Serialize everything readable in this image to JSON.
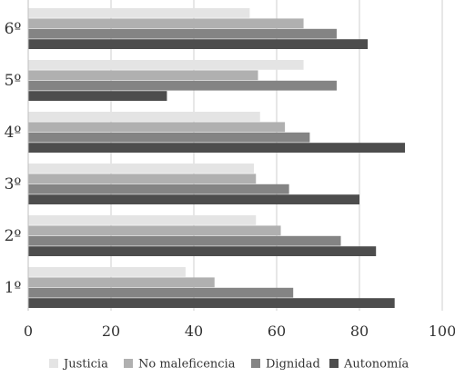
{
  "chart_data": {
    "type": "bar",
    "orientation": "horizontal",
    "categories": [
      "6º",
      "5º",
      "4º",
      "3º",
      "2º",
      "1º"
    ],
    "series": [
      {
        "name": "Justicia",
        "color": "#e4e4e4",
        "values": [
          53.5,
          66.5,
          56,
          54.5,
          55,
          38
        ]
      },
      {
        "name": "No maleficencia",
        "color": "#b0b0b0",
        "values": [
          66.5,
          55.5,
          62,
          55,
          61,
          45
        ]
      },
      {
        "name": "Dignidad",
        "color": "#848484",
        "values": [
          74.5,
          74.5,
          68,
          63,
          75.5,
          64
        ]
      },
      {
        "name": "Autonomía",
        "color": "#4d4d4d",
        "values": [
          82,
          33.5,
          91,
          80,
          84,
          88.5
        ]
      }
    ],
    "xlim": [
      0,
      100
    ],
    "xticks": [
      0,
      20,
      40,
      60,
      80,
      100
    ],
    "grid": "vertical",
    "legend": "bottom",
    "title": "",
    "xlabel": "",
    "ylabel": ""
  }
}
